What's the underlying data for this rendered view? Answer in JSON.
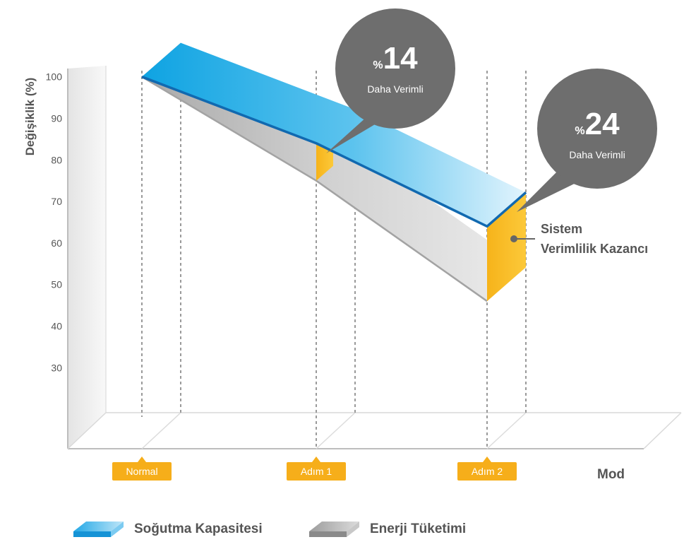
{
  "chart_data": {
    "type": "line",
    "title": "",
    "ylabel": "Değişiklik (%)",
    "xlabel": "Mod",
    "ylim": [
      20,
      100
    ],
    "yticks": [
      30,
      40,
      50,
      60,
      70,
      80,
      90,
      100
    ],
    "categories": [
      "Normal",
      "Adım 1",
      "Adım 2"
    ],
    "series": [
      {
        "name": "Soğutma Kapasitesi",
        "values": [
          100,
          84,
          64
        ],
        "color": "#1a9fe0"
      },
      {
        "name": "Enerji Tüketimi",
        "values": [
          100,
          75,
          46
        ],
        "color": "#bdbdbd"
      }
    ],
    "gap_color": "#f9b91a",
    "callouts": [
      {
        "value": "14",
        "prefix": "%",
        "text": "Daha Verimli"
      },
      {
        "value": "24",
        "prefix": "%",
        "text": "Daha Verimli"
      }
    ],
    "annotation": [
      "Sistem",
      "Verimlilik Kazancı"
    ],
    "grid": false,
    "legend_position": "bottom"
  }
}
